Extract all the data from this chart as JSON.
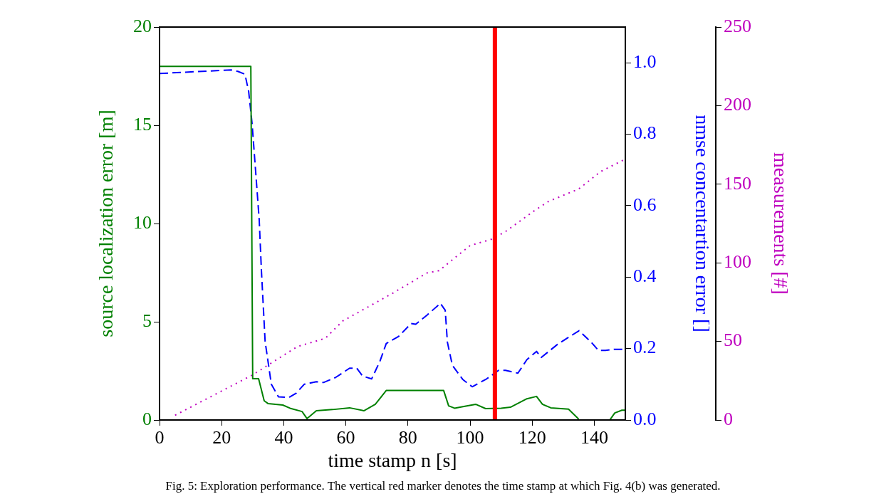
{
  "chart_data": {
    "type": "line",
    "xlabel": "time stamp n [s]",
    "ylabel": "source localization error [m]",
    "y2label": "nmse concentartion error []",
    "y3label": "measurements [#]",
    "xlim": [
      0,
      150
    ],
    "xticks": [
      0,
      20,
      40,
      60,
      80,
      100,
      120,
      140
    ],
    "ylim": [
      0,
      20
    ],
    "yticks": [
      0,
      5,
      10,
      15,
      20
    ],
    "y2lim": [
      0,
      1.1
    ],
    "y2ticks": [
      {
        "value": 0,
        "label": "0.0"
      },
      0.2,
      0.4,
      0.6,
      0.8,
      {
        "value": 1,
        "label": "1.0"
      }
    ],
    "y3lim": [
      0,
      250
    ],
    "y3ticks": [
      0,
      50,
      100,
      150,
      200,
      250
    ],
    "legend": false,
    "series": [
      {
        "color": "#008000",
        "line_style": "solid",
        "x": [
          0,
          29.4,
          30,
          31.9,
          33.7,
          35,
          39.7,
          42,
          45.9,
          47.5,
          50.5,
          55.7,
          61.2,
          65.8,
          69.5,
          73,
          91.5,
          93.1,
          95,
          97.7,
          101.8,
          105,
          110,
          113,
          118.3,
          121.4,
          123.3,
          126,
          131.7,
          134.8,
          135,
          145,
          146.6,
          148.9,
          150
        ],
        "values": [
          18,
          18,
          2.1,
          2.1,
          0.98,
          0.83,
          0.76,
          0.6,
          0.43,
          0.07,
          0.47,
          0.53,
          0.62,
          0.47,
          0.8,
          1.5,
          1.5,
          0.72,
          0.6,
          0.68,
          0.8,
          0.58,
          0.6,
          0.65,
          1.08,
          1.2,
          0.8,
          0.62,
          0.55,
          0.07,
          0,
          0,
          0.36,
          0.5,
          0.5
        ]
      },
      {
        "color": "#0000ff",
        "line_style": "dashed",
        "axis": "y2",
        "x": [
          0,
          23,
          25.2,
          27.5,
          28.7,
          29.8,
          31,
          32.1,
          32.8,
          34,
          36,
          38.3,
          41.7,
          44,
          46.6,
          50.5,
          52.8,
          56.7,
          61.2,
          63.5,
          65.4,
          68.3,
          71,
          73,
          77,
          81,
          82.5,
          86.2,
          90.1,
          90.4,
          92,
          92.7,
          94.3,
          97.7,
          100.7,
          105.3,
          109.2,
          111.4,
          115.4,
          118.3,
          121.4,
          122.9,
          128.2,
          135.1,
          139,
          141.3,
          143.6,
          146.6,
          150
        ],
        "values": [
          0.97,
          0.98,
          0.976,
          0.968,
          0.92,
          0.83,
          0.69,
          0.56,
          0.42,
          0.22,
          0.1,
          0.065,
          0.063,
          0.075,
          0.1,
          0.107,
          0.105,
          0.119,
          0.145,
          0.145,
          0.123,
          0.115,
          0.165,
          0.214,
          0.234,
          0.27,
          0.268,
          0.294,
          0.324,
          0.327,
          0.307,
          0.218,
          0.153,
          0.113,
          0.093,
          0.115,
          0.139,
          0.139,
          0.131,
          0.169,
          0.192,
          0.175,
          0.212,
          0.25,
          0.218,
          0.195,
          0.195,
          0.198,
          0.198
        ]
      },
      {
        "color": "#bf00bf",
        "line_style": "dotted",
        "axis": "y3",
        "x": [
          5,
          29.8,
          44.3,
          53.4,
          59,
          74.5,
          86.2,
          90,
          100,
          107,
          111.5,
          120.6,
          125.2,
          135,
          142,
          150
        ],
        "values": [
          3,
          28.5,
          46.6,
          52,
          63,
          80,
          93.6,
          95,
          111,
          115,
          120,
          133,
          139,
          147,
          158,
          166
        ]
      }
    ],
    "ref_lines": [
      {
        "axis": "x",
        "value": 108,
        "color": "#ff0000"
      }
    ],
    "annotations": [
      "Fig. 5: Exploration performance. The vertical red marker denotes the time stamp at which Fig. 4(b) was generated."
    ]
  }
}
